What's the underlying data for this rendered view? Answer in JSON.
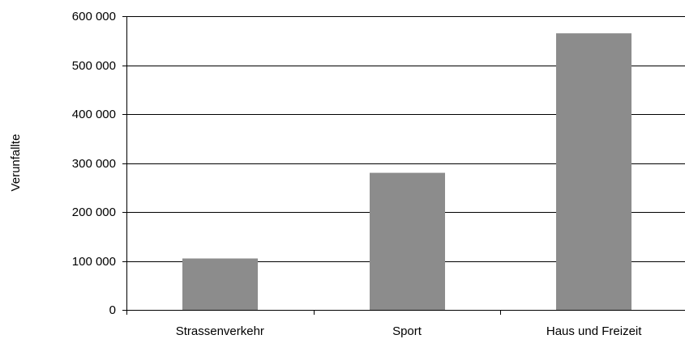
{
  "chart_data": {
    "type": "bar",
    "categories": [
      "Strassenverkehr",
      "Sport",
      "Haus und Freizeit"
    ],
    "values": [
      105000,
      280000,
      565000
    ],
    "ylabel": "Verunfallte",
    "xlabel": "",
    "ylim": [
      0,
      600000
    ],
    "yticks": [
      0,
      100000,
      200000,
      300000,
      400000,
      500000,
      600000
    ],
    "ytick_labels": [
      "0",
      "100 000",
      "200 000",
      "300 000",
      "400 000",
      "500 000",
      "600 000"
    ],
    "grid": "horizontal",
    "bar_color": "#8c8c8c"
  }
}
